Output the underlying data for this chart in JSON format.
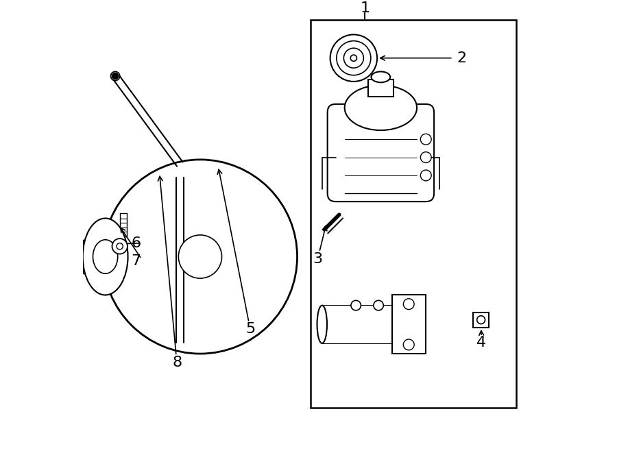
{
  "bg_color": "#ffffff",
  "line_color": "#000000",
  "label_color": "#000000",
  "fig_width": 9.0,
  "fig_height": 6.61,
  "dpi": 100,
  "label_fontsize": 16
}
